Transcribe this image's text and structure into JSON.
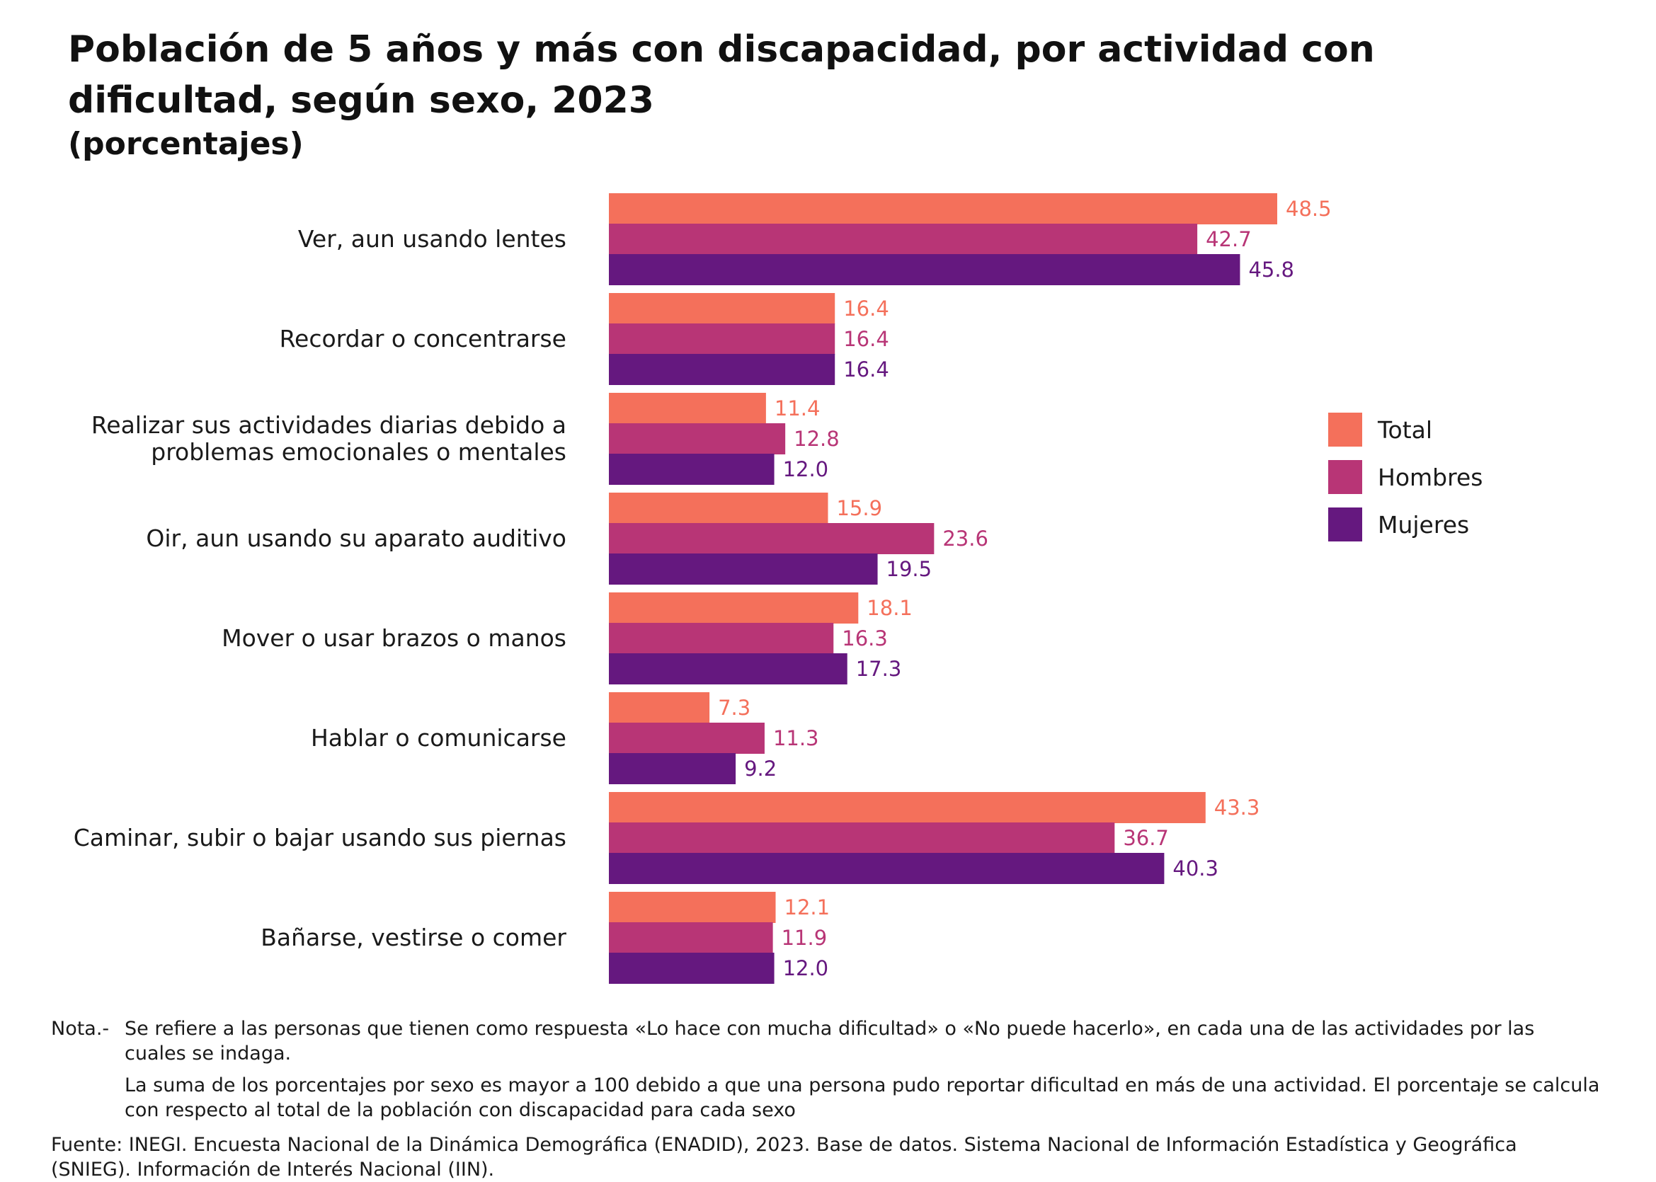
{
  "chart_data": {
    "type": "bar",
    "orientation": "horizontal",
    "title": "Población de 5 años y más con discapacidad, por actividad con dificultad, según sexo, 2023",
    "subtitle": "(porcentajes)",
    "categories": [
      [
        "Ver, aun usando lentes"
      ],
      [
        "Recordar o concentrarse"
      ],
      [
        "Realizar sus actividades diarias debido a",
        "problemas emocionales o mentales"
      ],
      [
        "Oir, aun usando su aparato auditivo"
      ],
      [
        "Mover o usar brazos o manos"
      ],
      [
        "Hablar o comunicarse"
      ],
      [
        "Caminar, subir o bajar usando sus piernas"
      ],
      [
        "Bañarse, vestirse o comer"
      ]
    ],
    "series": [
      {
        "name": "Total",
        "color": "#F4705B",
        "values": [
          48.5,
          16.4,
          11.4,
          15.9,
          18.1,
          7.3,
          43.3,
          12.1
        ]
      },
      {
        "name": "Hombres",
        "color": "#B83576",
        "values": [
          42.7,
          16.4,
          12.8,
          23.6,
          16.3,
          11.3,
          36.7,
          11.9
        ]
      },
      {
        "name": "Mujeres",
        "color": "#65187F",
        "values": [
          45.8,
          16.4,
          12.0,
          19.5,
          17.3,
          9.2,
          40.3,
          12.0
        ]
      }
    ],
    "xlim": [
      0,
      48.5
    ],
    "grid": false,
    "legend": "right",
    "value_labels": true
  },
  "notes": {
    "prefix": "Nota.-",
    "line1": "Se refiere a las personas que tienen como respuesta «Lo hace con mucha dificultad» o «No puede hacerlo», en cada una de las actividades por las cuales se indaga.",
    "line2": "La suma de los porcentajes por sexo es mayor a 100 debido a que una persona pudo reportar dificultad en más de una actividad. El porcentaje se calcula con respecto al total de la población con discapacidad para cada sexo",
    "source": "Fuente: INEGI. Encuesta Nacional de la Dinámica Demográfica (ENADID), 2023. Base de datos. Sistema Nacional de Información Estadística y Geográfica (SNIEG). Información de Interés Nacional (IIN)."
  }
}
